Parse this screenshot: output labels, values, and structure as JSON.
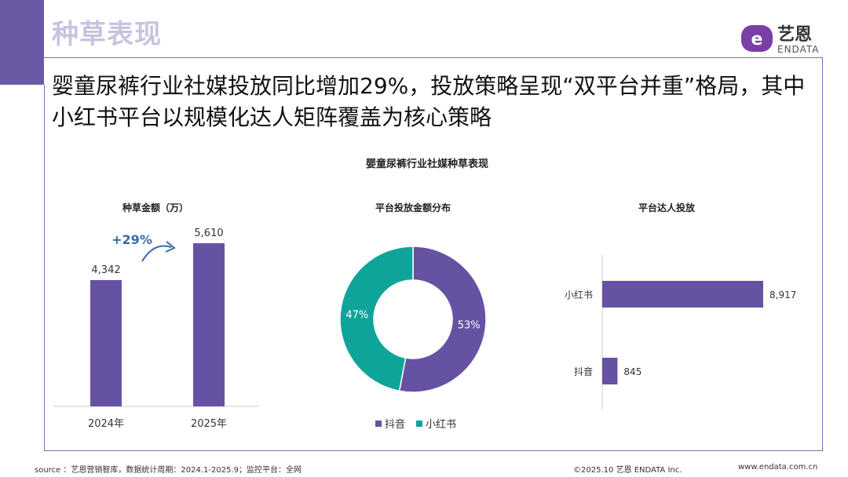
{
  "header": {
    "section_title": "种草表现",
    "brand_name": "艺恩",
    "brand_sub": "ENDATA",
    "headline": "婴童尿裤行业社媒投放同比增加29%，投放策略呈现“双平台并重”格局，其中小红书平台以规模化达人矩阵覆盖为核心策略"
  },
  "figure_title": "婴童尿裤行业社媒种草表现",
  "chart_data": [
    {
      "type": "bar",
      "title": "种草金额（万）",
      "categories": [
        "2024年",
        "2025年"
      ],
      "values": [
        4342,
        5610
      ],
      "value_labels": [
        "4,342",
        "5,610"
      ],
      "annotation": "+29%",
      "color": "#6652a3"
    },
    {
      "type": "pie",
      "title": "平台投放金额分布",
      "labels": [
        "抖音",
        "小红书"
      ],
      "values": [
        53,
        47
      ],
      "value_labels": [
        "53%",
        "47%"
      ],
      "colors": [
        "#6652a3",
        "#0ea49a"
      ],
      "legend_position": "bottom"
    },
    {
      "type": "bar",
      "orientation": "horizontal",
      "title": "平台达人投放",
      "categories": [
        "小红书",
        "抖音"
      ],
      "values": [
        8917,
        845
      ],
      "value_labels": [
        "8,917",
        "845"
      ],
      "color": "#6652a3"
    }
  ],
  "footer": {
    "source": "source ：艺恩营销智库，数据统计周期：2024.1-2025.9；监控平台：全网",
    "copyright": "©2025.10 艺恩 ENDATA Inc.",
    "website": "www.endata.com.cn"
  }
}
